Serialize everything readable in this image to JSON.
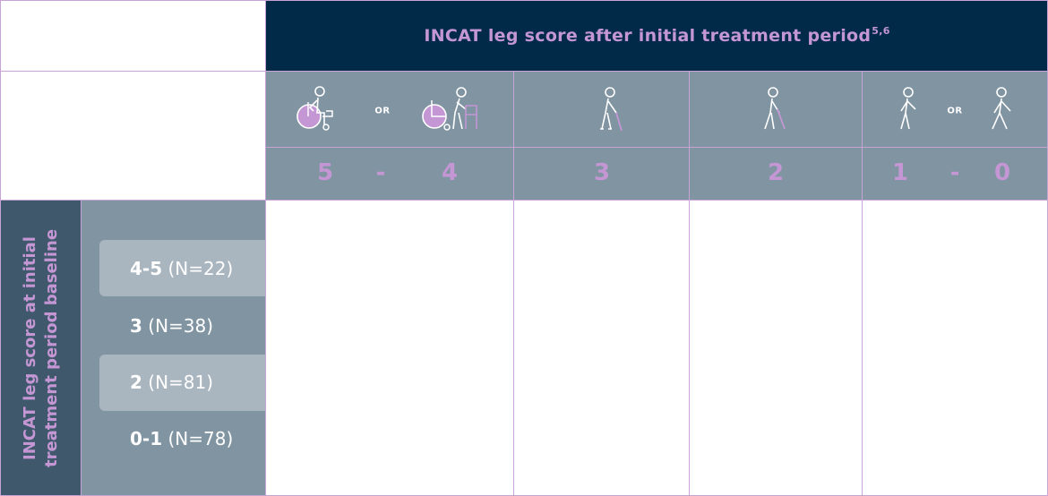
{
  "header": {
    "title": "INCAT leg score after initial treatment period",
    "superscript": "5,6"
  },
  "or_label": "OR",
  "score_columns": [
    {
      "icons": [
        "wheelchair-icon",
        "wheelchair-walker-icon"
      ],
      "scores": [
        "5",
        "-",
        "4"
      ]
    },
    {
      "icons": [
        "walking-cane-icon"
      ],
      "scores": [
        "3"
      ]
    },
    {
      "icons": [
        "walking-cane-icon"
      ],
      "scores": [
        "2"
      ]
    },
    {
      "icons": [
        "walking-person-icon",
        "walking-person-icon"
      ],
      "scores": [
        "1",
        "-",
        "0"
      ]
    }
  ],
  "side_label": {
    "line1": "INCAT leg score at initial",
    "line2": "treatment period baseline"
  },
  "rows": [
    {
      "score": "4-5",
      "n": "(N=22)"
    },
    {
      "score": "3",
      "n": "(N=38)"
    },
    {
      "score": "2",
      "n": "(N=81)"
    },
    {
      "score": "0-1",
      "n": "(N=78)"
    }
  ],
  "colors": {
    "navy": "#002a48",
    "slate": "#8094a2",
    "dark_slate": "#3f586c",
    "lavender": "#c497d4",
    "band": "#a9b5bf"
  }
}
